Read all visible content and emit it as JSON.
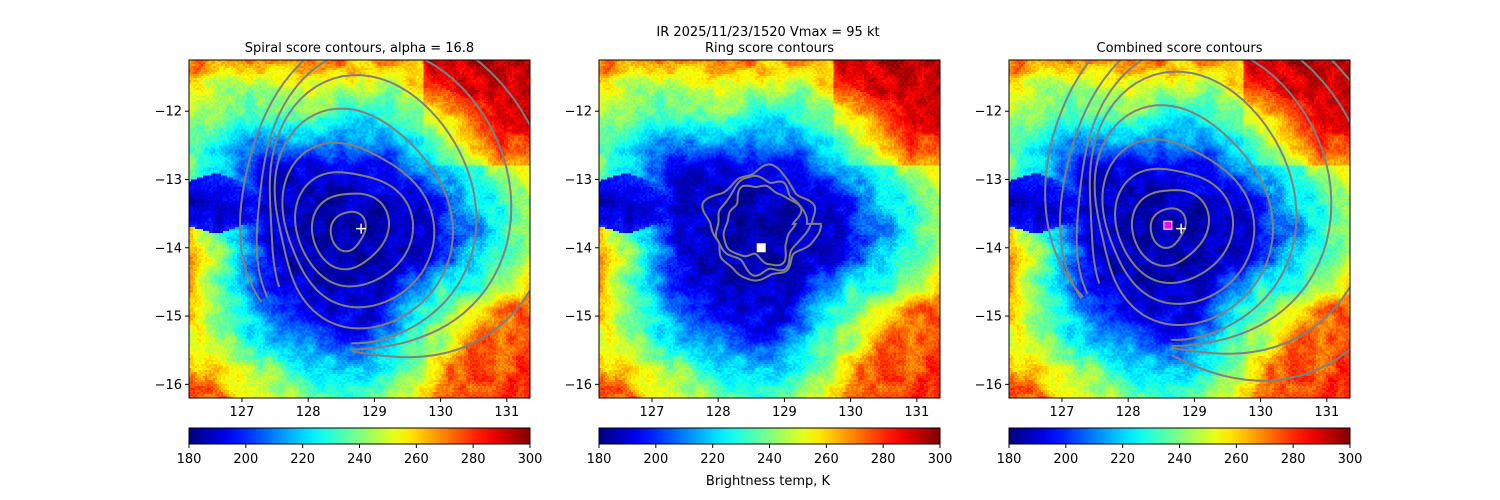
{
  "figure": {
    "suptitle_line1": "IR  2025/11/23/1520    Vmax = 95 kt",
    "colorbar_label": "Brightness temp, K"
  },
  "colormap": "jet",
  "chart_data": [
    {
      "type": "heatmap",
      "title": "Spiral score contours, alpha = 16.8",
      "xlim": [
        126.2,
        131.35
      ],
      "ylim": [
        -16.2,
        -11.25
      ],
      "xticks": [
        127,
        128,
        129,
        130,
        131
      ],
      "yticks": [
        -12,
        -13,
        -14,
        -15,
        -16
      ],
      "colorbar": {
        "min": 180,
        "max": 300,
        "ticks": [
          180,
          200,
          220,
          240,
          260,
          280,
          300
        ]
      },
      "field": {
        "center": [
          128.55,
          -13.85
        ],
        "eye_temp": 184,
        "core_radius_deg": 1.3,
        "outer_radius_deg": 3.0,
        "background_temp": 270
      },
      "contours": {
        "kind": "spiral",
        "center": [
          128.6,
          -13.75
        ],
        "levels": 8,
        "color": "#808080"
      },
      "markers": [
        {
          "symbol": "+",
          "x": 128.8,
          "y": -13.72,
          "color": "#ffffff"
        }
      ]
    },
    {
      "type": "heatmap",
      "title": "Ring score contours",
      "xlim": [
        126.2,
        131.35
      ],
      "ylim": [
        -16.2,
        -11.25
      ],
      "xticks": [
        127,
        128,
        129,
        130,
        131
      ],
      "yticks": [
        -12,
        -13,
        -14,
        -15,
        -16
      ],
      "colorbar": {
        "min": 180,
        "max": 300,
        "ticks": [
          180,
          200,
          220,
          240,
          260,
          280,
          300
        ]
      },
      "field": {
        "center": [
          128.55,
          -13.85
        ],
        "eye_temp": 184,
        "core_radius_deg": 1.3,
        "outer_radius_deg": 3.0,
        "background_temp": 270
      },
      "contours": {
        "kind": "ring",
        "center": [
          128.65,
          -13.65
        ],
        "levels": 1,
        "color": "#808080"
      },
      "markers": [
        {
          "symbol": "square",
          "x": 128.65,
          "y": -14.0,
          "color": "#ffffff"
        }
      ]
    },
    {
      "type": "heatmap",
      "title": "Combined score contours",
      "xlim": [
        126.2,
        131.35
      ],
      "ylim": [
        -16.2,
        -11.25
      ],
      "xticks": [
        127,
        128,
        129,
        130,
        131
      ],
      "yticks": [
        -12,
        -13,
        -14,
        -15,
        -16
      ],
      "colorbar": {
        "min": 180,
        "max": 300,
        "ticks": [
          180,
          200,
          220,
          240,
          260,
          280,
          300
        ]
      },
      "field": {
        "center": [
          128.55,
          -13.85
        ],
        "eye_temp": 184,
        "core_radius_deg": 1.3,
        "outer_radius_deg": 3.0,
        "background_temp": 270
      },
      "contours": {
        "kind": "spiral",
        "center": [
          128.6,
          -13.7
        ],
        "levels": 9,
        "color": "#808080"
      },
      "markers": [
        {
          "symbol": "+",
          "x": 128.8,
          "y": -13.72,
          "color": "#ffffff"
        },
        {
          "symbol": "square",
          "x": 128.6,
          "y": -13.67,
          "color": "#ff00ff"
        }
      ]
    }
  ]
}
